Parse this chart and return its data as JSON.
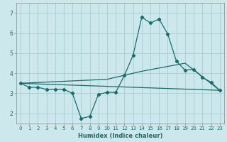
{
  "xlabel": "Humidex (Indice chaleur)",
  "background_color": "#cce8ec",
  "line_color": "#1a6b6b",
  "xlim": [
    -0.5,
    23.5
  ],
  "ylim": [
    1.5,
    7.5
  ],
  "yticks": [
    2,
    3,
    4,
    5,
    6,
    7
  ],
  "xticks": [
    0,
    1,
    2,
    3,
    4,
    5,
    6,
    7,
    8,
    9,
    10,
    11,
    12,
    13,
    14,
    15,
    16,
    17,
    18,
    19,
    20,
    21,
    22,
    23
  ],
  "series1_x": [
    0,
    1,
    2,
    3,
    4,
    5,
    6,
    7,
    8,
    9,
    10,
    11,
    12,
    13,
    14,
    15,
    16,
    17,
    18,
    19,
    20,
    21,
    22,
    23
  ],
  "series1_y": [
    3.5,
    3.3,
    3.3,
    3.2,
    3.2,
    3.2,
    3.0,
    1.75,
    1.85,
    2.95,
    3.05,
    3.05,
    3.9,
    4.9,
    6.8,
    6.5,
    6.7,
    5.95,
    4.6,
    4.15,
    4.2,
    3.8,
    3.55,
    3.15
  ],
  "series2_x": [
    0,
    23
  ],
  "series2_y": [
    3.5,
    3.15
  ],
  "series3_x": [
    0,
    10,
    14,
    19,
    23
  ],
  "series3_y": [
    3.5,
    3.7,
    4.1,
    4.5,
    3.15
  ],
  "grid_color": "#a0c8cc",
  "marker": "D",
  "marker_size": 2.2,
  "linewidth": 0.9,
  "tick_fontsize": 5.0,
  "xlabel_fontsize": 6.0
}
